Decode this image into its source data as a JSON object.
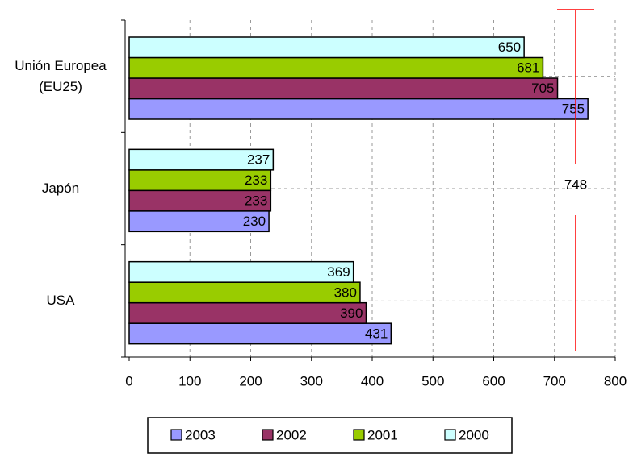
{
  "chart_data": {
    "type": "bar",
    "orientation": "horizontal",
    "categories": [
      "Unión Europea (EU25)",
      "Japón",
      "USA"
    ],
    "series": [
      {
        "name": "2003",
        "color": "#9999ff",
        "values": [
          755,
          230,
          431
        ]
      },
      {
        "name": "2002",
        "color": "#993366",
        "values": [
          705,
          233,
          390
        ]
      },
      {
        "name": "2001",
        "color": "#99cc00",
        "values": [
          681,
          233,
          380
        ]
      },
      {
        "name": "2000",
        "color": "#ccffff",
        "values": [
          650,
          237,
          369
        ]
      }
    ],
    "xlim": [
      0,
      800
    ],
    "xticks": [
      0,
      100,
      200,
      300,
      400,
      500,
      600,
      700,
      800
    ],
    "grid": true,
    "legend": "bottom",
    "annotation": "748",
    "annotation_color": "#ff0000"
  }
}
